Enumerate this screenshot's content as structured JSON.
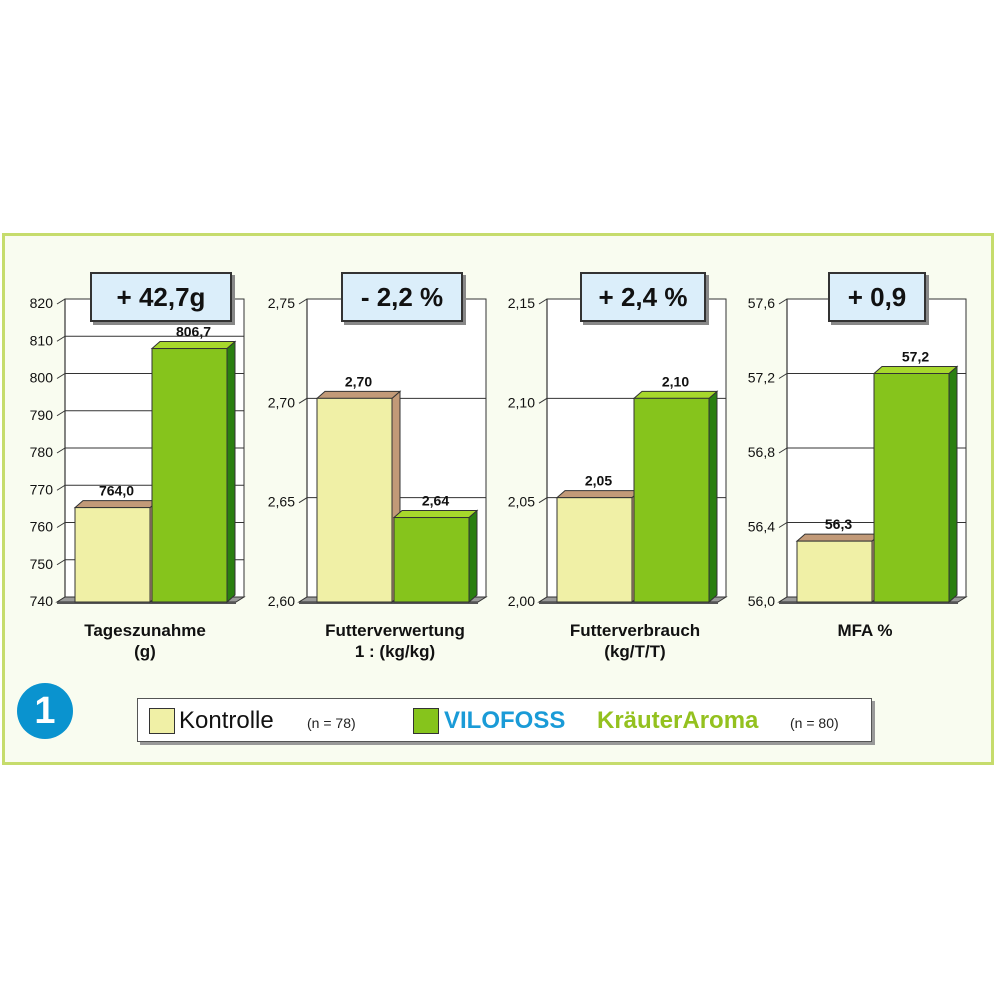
{
  "colors": {
    "frame_border": "#c6dc6c",
    "kontrolle": "#f0f0a6",
    "kontrolle_top": "#c29a78",
    "vilofoss": "#86c41c",
    "vilofoss_top": "#a7d82c",
    "vilofoss_side": "#2a7f10",
    "delta_box": "#dbeefa",
    "badge": "#0a93cf",
    "brand_blue": "#1a9bd7",
    "brand_green": "#94c11f"
  },
  "badge": "1",
  "legend": {
    "kontrolle_label": "Kontrolle",
    "kontrolle_n": "(n = 78)",
    "brand_part1": "VILOFOSS",
    "brand_part2": "KräuterAroma",
    "brand_n": "(n = 80)"
  },
  "chart_data": [
    {
      "type": "bar",
      "categories": [
        "Kontrolle",
        "VILOFOSS KräuterAroma"
      ],
      "values": [
        764.0,
        806.7
      ],
      "value_labels": [
        "764,0",
        "806,7"
      ],
      "label_line1": "Tageszunahme",
      "label_line2": "(g)",
      "delta": "+ 42,7g",
      "ylim": [
        740,
        820
      ],
      "ticks": [
        "740",
        "750",
        "760",
        "770",
        "780",
        "790",
        "800",
        "810",
        "820"
      ]
    },
    {
      "type": "bar",
      "categories": [
        "Kontrolle",
        "VILOFOSS KräuterAroma"
      ],
      "values": [
        2.7,
        2.64
      ],
      "value_labels": [
        "2,70",
        "2,64"
      ],
      "label_line1": "Futterverwertung",
      "label_line2": "1 : (kg/kg)",
      "delta": "- 2,2 %",
      "ylim": [
        2.6,
        2.75
      ],
      "ticks": [
        "2,60",
        "2,65",
        "2,70",
        "2,75"
      ]
    },
    {
      "type": "bar",
      "categories": [
        "Kontrolle",
        "VILOFOSS KräuterAroma"
      ],
      "values": [
        2.05,
        2.1
      ],
      "value_labels": [
        "2,05",
        "2,10"
      ],
      "label_line1": "Futterverbrauch",
      "label_line2": "(kg/T/T)",
      "delta": "+ 2,4 %",
      "ylim": [
        2.0,
        2.15
      ],
      "ticks": [
        "2,00",
        "2,05",
        "2,10",
        "2,15"
      ]
    },
    {
      "type": "bar",
      "categories": [
        "Kontrolle",
        "VILOFOSS KräuterAroma"
      ],
      "values": [
        56.3,
        57.2
      ],
      "value_labels": [
        "56,3",
        "57,2"
      ],
      "label_line1": "MFA %",
      "label_line2": "",
      "delta": "+ 0,9",
      "ylim": [
        56.0,
        57.6
      ],
      "ticks": [
        "56,0",
        "56,4",
        "56,8",
        "57,2",
        "57,6"
      ]
    }
  ]
}
